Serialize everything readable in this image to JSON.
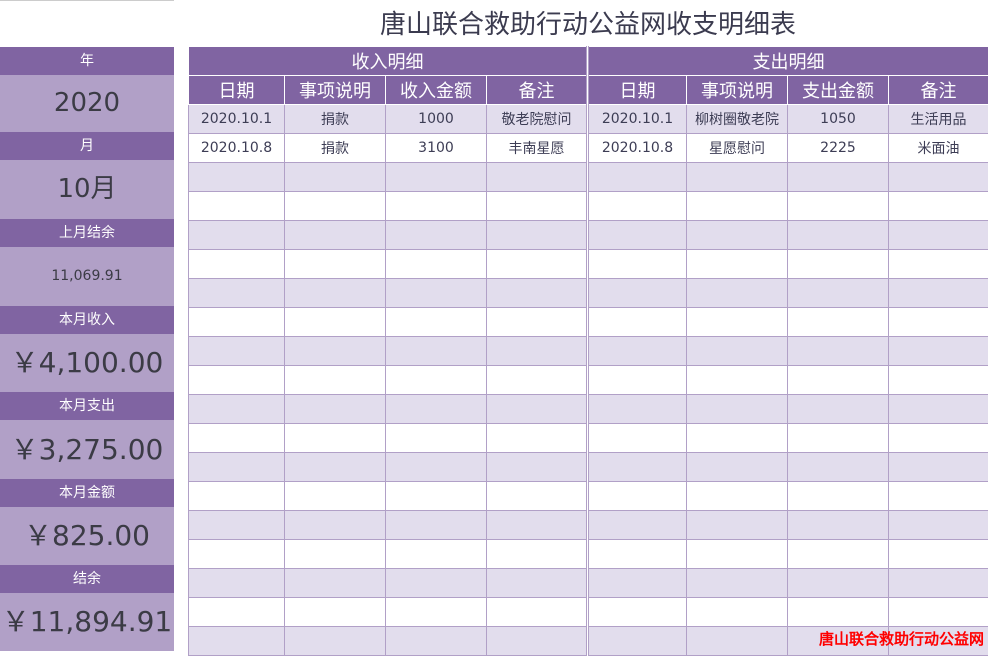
{
  "title": "唐山联合救助行动公益网收支明细表",
  "summary": [
    {
      "label": "年",
      "value": "2020"
    },
    {
      "label": "月",
      "value": "10月"
    },
    {
      "label": "上月结余",
      "value": "11,069.91"
    },
    {
      "label": "本月收入",
      "value": "￥4,100.00"
    },
    {
      "label": "本月支出",
      "value": "￥3,275.00"
    },
    {
      "label": "本月金额",
      "value": "￥825.00"
    },
    {
      "label": "结余",
      "value": "￥11,894.91"
    }
  ],
  "income": {
    "title": "收入明细",
    "headers": [
      "日期",
      "事项说明",
      "收入金额",
      "备注"
    ],
    "rows": [
      [
        "2020.10.1",
        "捐款",
        "1000",
        "敬老院慰问"
      ],
      [
        "2020.10.8",
        "捐款",
        "3100",
        "丰南星愿"
      ]
    ]
  },
  "expense": {
    "title": "支出明细",
    "headers": [
      "日期",
      "事项说明",
      "支出金额",
      "备注"
    ],
    "rows": [
      [
        "2020.10.1",
        "柳树圈敬老院",
        "1050",
        "生活用品"
      ],
      [
        "2020.10.8",
        "星愿慰问",
        "2225",
        "米面油"
      ]
    ]
  },
  "watermark": "唐山联合救助行动公益网"
}
